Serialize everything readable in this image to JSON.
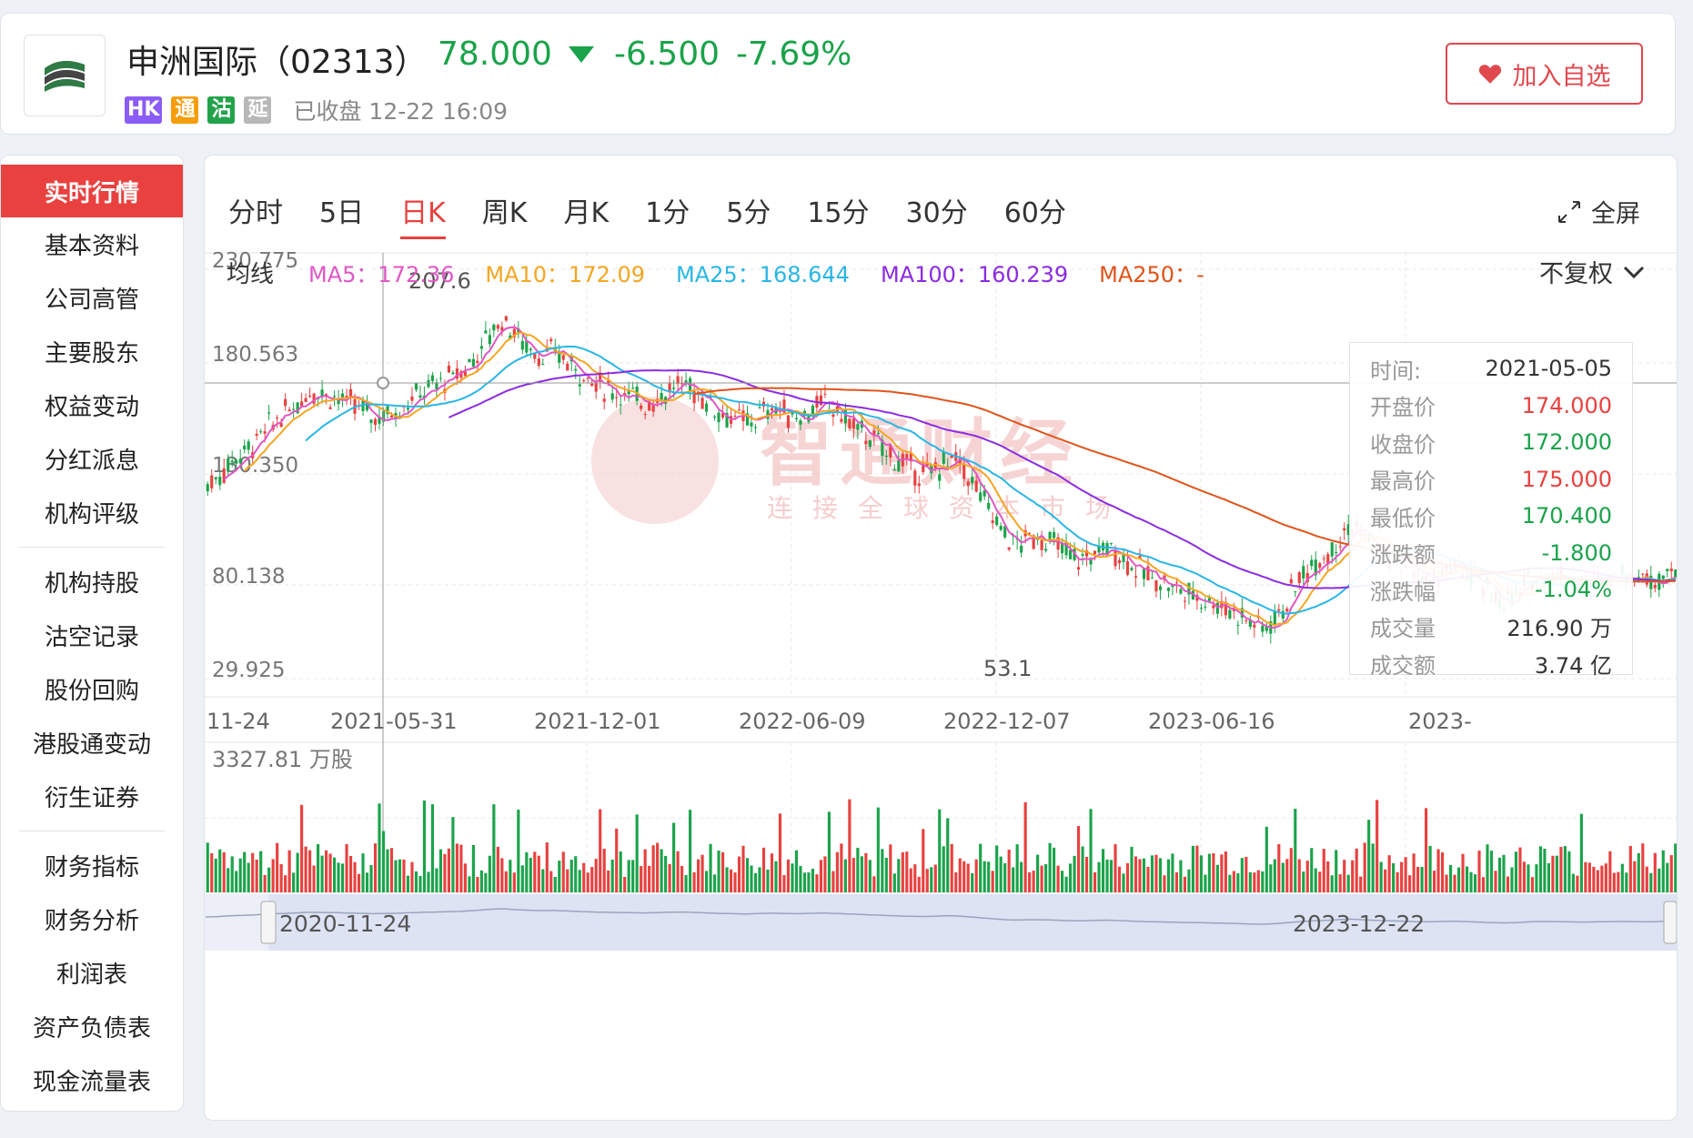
{
  "header": {
    "name": "申洲国际（02313）",
    "price": "78.000",
    "change": "-6.500",
    "change_pct": "-7.69%",
    "tags": [
      "HK",
      "通",
      "沽",
      "延"
    ],
    "status": "已收盘 12-22 16:09",
    "watch_label": "加入自选"
  },
  "sidebar": {
    "items": [
      "实时行情",
      "基本资料",
      "公司高管",
      "主要股东",
      "权益变动",
      "分红派息",
      "机构评级",
      "机构持股",
      "沽空记录",
      "股份回购",
      "港股通变动",
      "衍生证券",
      "财务指标",
      "财务分析",
      "利润表",
      "资产负债表",
      "现金流量表"
    ]
  },
  "tabs": [
    "分时",
    "5日",
    "日K",
    "周K",
    "月K",
    "1分",
    "5分",
    "15分",
    "30分",
    "60分"
  ],
  "fullscreen_label": "全屏",
  "ma": {
    "label": "均线",
    "ma5": "MA5：172.36",
    "ma10": "MA10：172.09",
    "ma25": "MA25：168.644",
    "ma100": "MA100：160.239",
    "ma250": "MA250：-"
  },
  "adjust_label": "不复权",
  "colors": {
    "up": "#e8413f",
    "down": "#1aa34a",
    "ma5": "#e056c4",
    "ma10": "#f5a623",
    "ma25": "#29b6e6",
    "ma100": "#8b2be2",
    "ma250": "#e0541a"
  },
  "watermark": {
    "title": "智通财经",
    "sub": "连接全球资本市场"
  },
  "tooltip": [
    {
      "k": "时间:",
      "v": "2021-05-05",
      "color": "#333"
    },
    {
      "k": "开盘价",
      "v": "174.000",
      "color": "#e8413f"
    },
    {
      "k": "收盘价",
      "v": "172.000",
      "color": "#1aa34a"
    },
    {
      "k": "最高价",
      "v": "175.000",
      "color": "#e8413f"
    },
    {
      "k": "最低价",
      "v": "170.400",
      "color": "#1aa34a"
    },
    {
      "k": "涨跌额",
      "v": "-1.800",
      "color": "#1aa34a"
    },
    {
      "k": "涨跌幅",
      "v": "-1.04%",
      "color": "#1aa34a"
    },
    {
      "k": "成交量",
      "v": "216.90 万",
      "color": "#333"
    },
    {
      "k": "成交额",
      "v": "3.74 亿",
      "color": "#333"
    }
  ],
  "chart_data": {
    "type": "candlestick",
    "y_ticks": [
      "230.775",
      "180.563",
      "130.350",
      "80.138",
      "29.925"
    ],
    "ylim": [
      29.925,
      230.775
    ],
    "x_ticks": [
      "11-24",
      "2021-05-31",
      "2021-12-01",
      "2022-06-09",
      "2022-12-07",
      "2023-06-16",
      "2023-"
    ],
    "high_label": "207.6",
    "low_label": "53.1",
    "volume_max_label": "3327.81 万股",
    "navigator": {
      "start": "2020-11-24",
      "end": "2023-12-22"
    },
    "close_series": [
      125,
      130,
      138,
      142,
      148,
      155,
      160,
      165,
      172,
      170,
      168,
      165,
      162,
      158,
      160,
      163,
      168,
      172,
      175,
      178,
      182,
      190,
      200,
      207,
      198,
      192,
      188,
      190,
      185,
      180,
      175,
      172,
      170,
      168,
      165,
      168,
      172,
      175,
      170,
      165,
      160,
      158,
      155,
      160,
      163,
      160,
      158,
      162,
      165,
      160,
      155,
      150,
      145,
      140,
      135,
      132,
      130,
      135,
      138,
      130,
      120,
      110,
      100,
      95,
      100,
      98,
      95,
      90,
      88,
      92,
      95,
      90,
      85,
      80,
      78,
      75,
      72,
      70,
      68,
      65,
      62,
      58,
      55,
      60,
      70,
      80,
      88,
      92,
      100,
      105,
      98,
      92,
      88,
      85,
      80,
      78,
      82,
      85,
      80,
      75,
      70,
      68,
      72,
      80,
      82,
      80,
      78,
      76,
      78,
      80,
      82,
      80,
      78,
      82,
      85
    ]
  }
}
